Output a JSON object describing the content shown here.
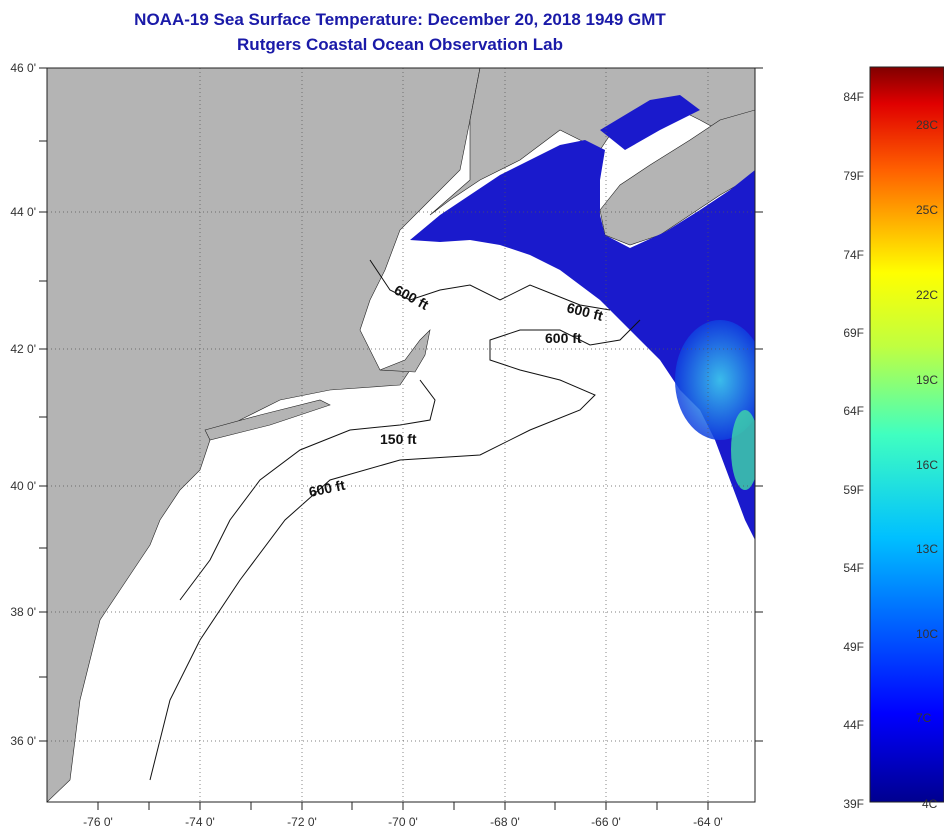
{
  "header": {
    "title": "NOAA-19 Sea Surface Temperature:  December 20, 2018 1949 GMT",
    "subtitle": "Rutgers Coastal Ocean Observation Lab"
  },
  "map": {
    "lon_ticks": [
      "-76 0'",
      "-74 0'",
      "-72 0'",
      "-70 0'",
      "-68 0'",
      "-66 0'",
      "-64 0'"
    ],
    "lat_ticks": [
      "46 0'",
      "44 0'",
      "42 0'",
      "40 0'",
      "38 0'",
      "36 0'"
    ],
    "depth_labels": [
      "600 ft",
      "600 ft",
      "600 ft",
      "150 ft",
      "600 ft"
    ],
    "colors": {
      "land": "#b4b4b4",
      "water_cold": "#1a1acc",
      "water_warm": "#30c0e8"
    }
  },
  "colorbar": {
    "fahrenheit": [
      "84F",
      "79F",
      "74F",
      "69F",
      "64F",
      "59F",
      "54F",
      "49F",
      "44F",
      "39F"
    ],
    "celsius": [
      "28C",
      "25C",
      "22C",
      "19C",
      "16C",
      "13C",
      "10C",
      "7C",
      "4C"
    ]
  }
}
